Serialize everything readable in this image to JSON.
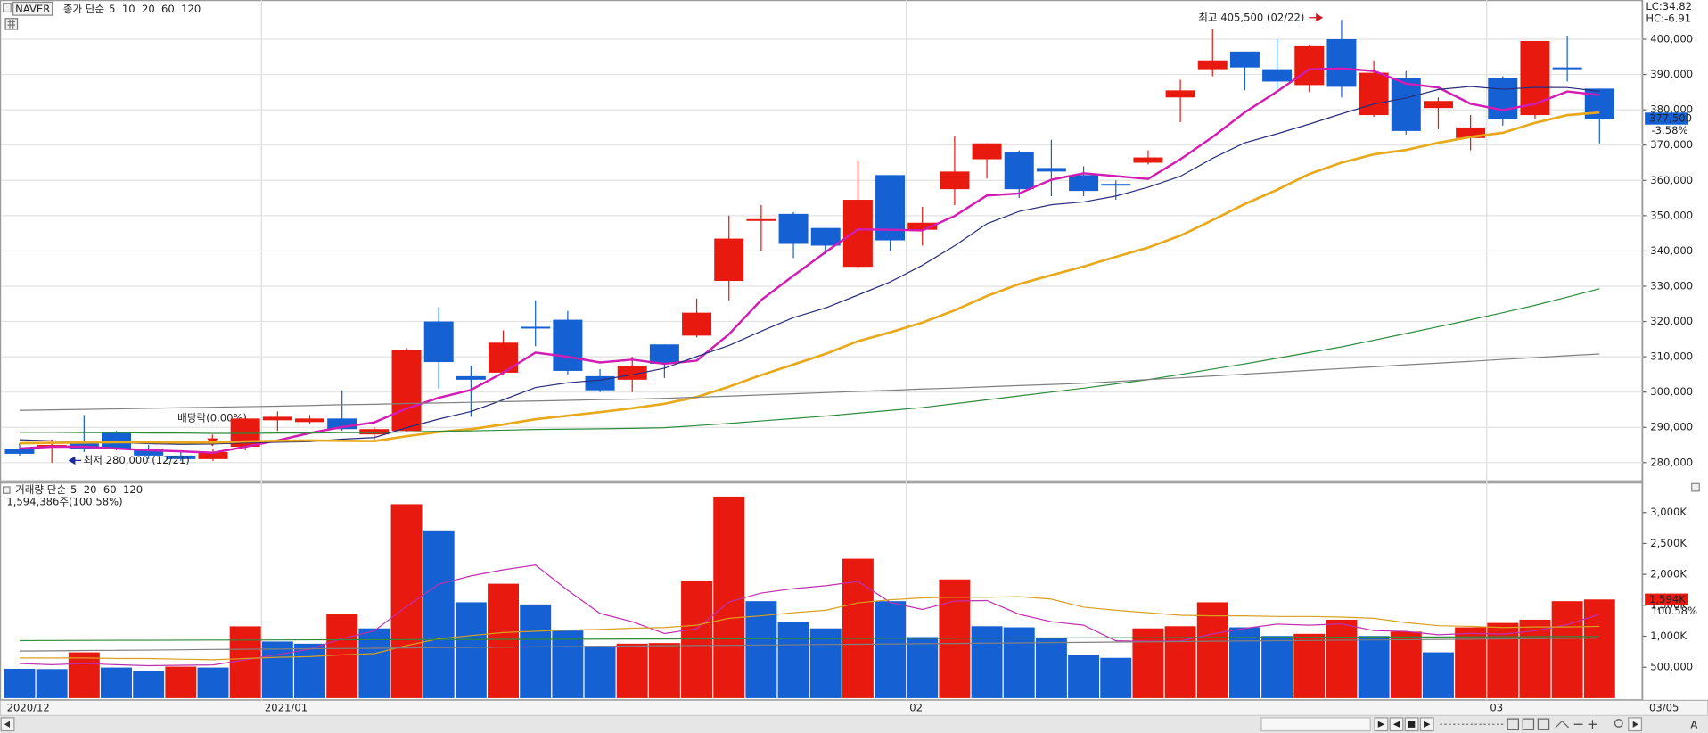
{
  "chart_data": [
    {
      "type": "candlestick",
      "name": "NAVER",
      "ma_label": "종가 단순",
      "lc_label": "LC:34.82",
      "hc_label": "HC:-6.91",
      "high_label": "최고 405,500 (02/22)",
      "low_label": "최저 280,000 (12/21)",
      "event_label": "배당락(0.00%)",
      "categories": [
        "2020/12",
        null,
        null,
        null,
        null,
        null,
        null,
        null,
        "2021/01",
        null,
        null,
        null,
        null,
        null,
        null,
        null,
        null,
        null,
        null,
        null,
        null,
        null,
        null,
        null,
        null,
        null,
        null,
        null,
        "02",
        null,
        null,
        null,
        null,
        null,
        null,
        null,
        null,
        null,
        null,
        null,
        null,
        null,
        null,
        null,
        null,
        null,
        "03",
        null,
        null,
        null
      ],
      "end_label": "03/05",
      "open": [
        284000,
        284500,
        285500,
        288500,
        284000,
        282000,
        281000,
        284500,
        292000,
        291500,
        292500,
        288000,
        289000,
        320000,
        304500,
        305500,
        318500,
        320500,
        304500,
        303500,
        313500,
        316000,
        331500,
        348500,
        350500,
        346500,
        335500,
        361500,
        346000,
        357500,
        366000,
        368000,
        363500,
        361500,
        359000,
        365000,
        383500,
        391500,
        396500,
        391500,
        387000,
        400000,
        378500,
        389000,
        380500,
        372000,
        389000,
        378500,
        392000,
        386000
      ],
      "high": [
        285500,
        286500,
        293500,
        289000,
        285000,
        283000,
        284000,
        293000,
        294500,
        293500,
        300500,
        290000,
        312500,
        324000,
        307500,
        317500,
        326000,
        323000,
        306500,
        310000,
        313500,
        326500,
        350000,
        353000,
        351000,
        346500,
        365500,
        361500,
        352500,
        372500,
        370500,
        368500,
        371500,
        364000,
        360000,
        368500,
        388500,
        403000,
        396500,
        400000,
        398500,
        405500,
        394000,
        391000,
        383500,
        378500,
        389500,
        399500,
        401000,
        386000
      ],
      "low": [
        282000,
        280000,
        283000,
        283500,
        281000,
        280500,
        280500,
        283500,
        289000,
        291000,
        289000,
        286500,
        288500,
        301000,
        293000,
        305000,
        313000,
        305000,
        300000,
        300000,
        304000,
        315500,
        326000,
        340000,
        338000,
        339000,
        335000,
        340000,
        341500,
        353000,
        360500,
        355000,
        355500,
        355500,
        354500,
        364500,
        376500,
        389500,
        385500,
        386000,
        385000,
        383500,
        378000,
        373000,
        374500,
        368500,
        375500,
        377500,
        388000,
        370500
      ],
      "close": [
        282500,
        285000,
        284000,
        284000,
        282000,
        281000,
        283000,
        292500,
        293000,
        292500,
        289500,
        289500,
        312000,
        308500,
        303500,
        314000,
        318000,
        306000,
        300500,
        307500,
        308000,
        322500,
        343500,
        349000,
        342000,
        341500,
        354500,
        343000,
        348000,
        362500,
        370500,
        357500,
        362500,
        357000,
        358500,
        366500,
        385500,
        394000,
        392000,
        388000,
        398000,
        386500,
        390500,
        374000,
        382500,
        375000,
        377500,
        399500,
        391500,
        377500
      ],
      "up_color": "#e8190f",
      "down_color": "#1560d2",
      "last_label": {
        "value": 377500,
        "label": "377,500"
      },
      "change_label": "-3.58%",
      "ylim": [
        275300,
        410500
      ],
      "yticks": [
        {
          "value": 280000,
          "label": "280,000"
        },
        {
          "value": 290000,
          "label": "290,000"
        },
        {
          "value": 300000,
          "label": "300,000"
        },
        {
          "value": 310000,
          "label": "310,000"
        },
        {
          "value": 320000,
          "label": "320,000"
        },
        {
          "value": 330000,
          "label": "330,000"
        },
        {
          "value": 340000,
          "label": "340,000"
        },
        {
          "value": 350000,
          "label": "350,000"
        },
        {
          "value": 360000,
          "label": "360,000"
        },
        {
          "value": 370000,
          "label": "370,000"
        },
        {
          "value": 380000,
          "label": "380,000"
        },
        {
          "value": 390000,
          "label": "390,000"
        },
        {
          "value": 400000,
          "label": "400,000"
        }
      ],
      "grid": true,
      "series": [
        {
          "name": "5",
          "color": "#d21cb4",
          "width": 2,
          "values": [
            284000,
            284500,
            284500,
            284000,
            283500,
            283200,
            282800,
            284500,
            286300,
            288400,
            290100,
            291400,
            295300,
            298400,
            300600,
            305500,
            311200,
            310000,
            308400,
            309200,
            308000,
            308900,
            316400,
            326100,
            333000,
            339700,
            346100,
            346000,
            345800,
            349900,
            355700,
            356300,
            360200,
            362000,
            361200,
            360400,
            366000,
            372300,
            379300,
            385200,
            391500,
            391700,
            391000,
            387400,
            386300,
            381700,
            379900,
            381700,
            385200,
            384200
          ]
        },
        {
          "name": "10",
          "color": "#2a2e7a",
          "width": 1,
          "values": [
            286500,
            286200,
            285900,
            285700,
            285400,
            285200,
            285300,
            285600,
            285800,
            285950,
            286650,
            287100,
            289900,
            292350,
            294500,
            297800,
            301300,
            302650,
            303400,
            304900,
            306750,
            310050,
            313200,
            317250,
            321100,
            323850,
            327500,
            331200,
            335950,
            341450,
            347700,
            351200,
            353100,
            353900,
            355550,
            358050,
            361150,
            366250,
            370650,
            373200,
            375950,
            378850,
            381650,
            383350,
            385750,
            386600,
            385800,
            386350,
            386300,
            385250
          ]
        },
        {
          "name": "20",
          "color": "#e8a91c",
          "width": 2.2,
          "values": [
            285500,
            285600,
            285700,
            285800,
            285800,
            285700,
            285700,
            286000,
            286200,
            286300,
            286200,
            286100,
            287500,
            288700,
            289500,
            290800,
            292300,
            293300,
            294300,
            295425,
            296700,
            298575,
            301550,
            304800,
            307800,
            310825,
            314400,
            316925,
            319675,
            323175,
            327225,
            330625,
            333150,
            335575,
            338325,
            340950,
            344325,
            348725,
            353300,
            357325,
            361825,
            365025,
            367375,
            368625,
            370650,
            372325,
            373475,
            376300,
            378475,
            379225
          ]
        },
        {
          "name": "60",
          "color": "#2e8b3e",
          "width": 1,
          "values": [
            288600,
            288600,
            288500,
            288500,
            288400,
            288400,
            288300,
            288300,
            288400,
            288400,
            288500,
            288500,
            288700,
            288900,
            289000,
            289200,
            289400,
            289500,
            289600,
            289700,
            289900,
            290500,
            291100,
            291800,
            292500,
            293200,
            294000,
            294800,
            295600,
            296700,
            297800,
            298900,
            300000,
            301100,
            302300,
            303500,
            305000,
            306500,
            308000,
            309600,
            311200,
            312800,
            314700,
            316600,
            318500,
            320500,
            322500,
            324600,
            326900,
            329300
          ]
        },
        {
          "name": "120",
          "color": "#808080",
          "width": 1,
          "values": [
            294800,
            294950,
            295100,
            295250,
            295400,
            295550,
            295700,
            295850,
            296000,
            296200,
            296400,
            296550,
            296750,
            296900,
            297100,
            297300,
            297450,
            297650,
            297850,
            298000,
            298200,
            298550,
            298850,
            299200,
            299500,
            299850,
            300200,
            300500,
            300850,
            301150,
            301500,
            301850,
            302150,
            302500,
            303000,
            303550,
            304050,
            304550,
            305100,
            305600,
            306150,
            306650,
            307150,
            307700,
            308200,
            308700,
            309250,
            309750,
            310300,
            310800
          ]
        }
      ]
    },
    {
      "type": "bar",
      "ma_label": "거래량 단순",
      "info": "1,594,386주(100.58%)",
      "values": [
        475000,
        470000,
        740000,
        495000,
        440000,
        510000,
        495000,
        1160000,
        915000,
        880000,
        1355000,
        1127000,
        3134000,
        2711000,
        1549000,
        1849000,
        1514000,
        1092000,
        845000,
        880000,
        890000,
        1901000,
        3257000,
        1567000,
        1232000,
        1127000,
        2253000,
        1567000,
        986000,
        1919000,
        1162000,
        1144000,
        968000,
        704000,
        651000,
        1127000,
        1162000,
        1549000,
        1144000,
        1004000,
        1039000,
        1268000,
        1004000,
        1074000,
        740000,
        1144000,
        1215000,
        1268000,
        1567000,
        1594386
      ],
      "up_color": "#e8190f",
      "down_color": "#1560d2",
      "last_label": {
        "value": 1594386,
        "label": "1,594K"
      },
      "change_label": "100.58%",
      "ylim": [
        0,
        3450000
      ],
      "yticks": [
        {
          "value": 500000,
          "label": "500,000"
        },
        {
          "value": 1000000,
          "label": "1,000K"
        },
        {
          "value": 1500000,
          "label": "1,500K"
        },
        {
          "value": 2000000,
          "label": "2,000K"
        },
        {
          "value": 2500000,
          "label": "2,500K"
        },
        {
          "value": 3000000,
          "label": "3,000K"
        }
      ],
      "grid": false,
      "series": [
        {
          "name": "5",
          "color": "#c030b0",
          "width": 1,
          "values": [
            560000,
            540000,
            560000,
            540000,
            524000,
            531000,
            536000,
            620000,
            704000,
            792000,
            961000,
            1087400,
            1482200,
            1841400,
            1975200,
            2074000,
            2151400,
            1743000,
            1369800,
            1236000,
            1044200,
            1121600,
            1554600,
            1699000,
            1769400,
            1816800,
            1887200,
            1549200,
            1433000,
            1570400,
            1577400,
            1355600,
            1235800,
            1179400,
            925800,
            918800,
            922400,
            1038600,
            1126600,
            1197200,
            1179600,
            1200800,
            1091800,
            1077800,
            1025000,
            1046000,
            1035400,
            1088200,
            1186800,
            1357677
          ]
        },
        {
          "name": "20",
          "color": "#d8a020",
          "width": 1,
          "values": [
            650000,
            650000,
            650000,
            640000,
            640000,
            630000,
            620000,
            640000,
            660000,
            670000,
            700000,
            720000,
            850000,
            960000,
            1010000,
            1060000,
            1080000,
            1100000,
            1110000,
            1130000,
            1140000,
            1180000,
            1290000,
            1330000,
            1380000,
            1420000,
            1540000,
            1590000,
            1620000,
            1630000,
            1630000,
            1640000,
            1600000,
            1470000,
            1420000,
            1380000,
            1340000,
            1330000,
            1330000,
            1320000,
            1320000,
            1310000,
            1290000,
            1220000,
            1170000,
            1160000,
            1140000,
            1150000,
            1150000,
            1160000
          ]
        },
        {
          "name": "60",
          "color": "#2e8b3e",
          "width": 1,
          "values": [
            930000,
            931000,
            933000,
            934000,
            935000,
            936000,
            938000,
            939000,
            940000,
            942000,
            943000,
            944000,
            946000,
            947000,
            948000,
            950000,
            951000,
            952000,
            954000,
            955000,
            956000,
            958000,
            959000,
            960000,
            962000,
            963000,
            964000,
            966000,
            967000,
            968000,
            970000,
            971000,
            972000,
            974000,
            975000,
            976000,
            978000,
            979000,
            980000,
            982000,
            983000,
            984000,
            986000,
            987000,
            988000,
            990000,
            991000,
            992000,
            994000,
            995000
          ]
        },
        {
          "name": "120",
          "color": "#808080",
          "width": 1,
          "values": [
            760000,
            764000,
            769000,
            773000,
            777000,
            781000,
            786000,
            790000,
            794000,
            799000,
            803000,
            807000,
            811000,
            816000,
            820000,
            824000,
            829000,
            833000,
            837000,
            841000,
            846000,
            850000,
            854000,
            859000,
            863000,
            867000,
            871000,
            876000,
            880000,
            884000,
            889000,
            893000,
            897000,
            901000,
            906000,
            910000,
            914000,
            919000,
            923000,
            927000,
            931000,
            936000,
            940000,
            944000,
            949000,
            953000,
            957000,
            961000,
            966000,
            970000
          ]
        }
      ]
    }
  ],
  "toolbar": {
    "font_button": "A"
  }
}
